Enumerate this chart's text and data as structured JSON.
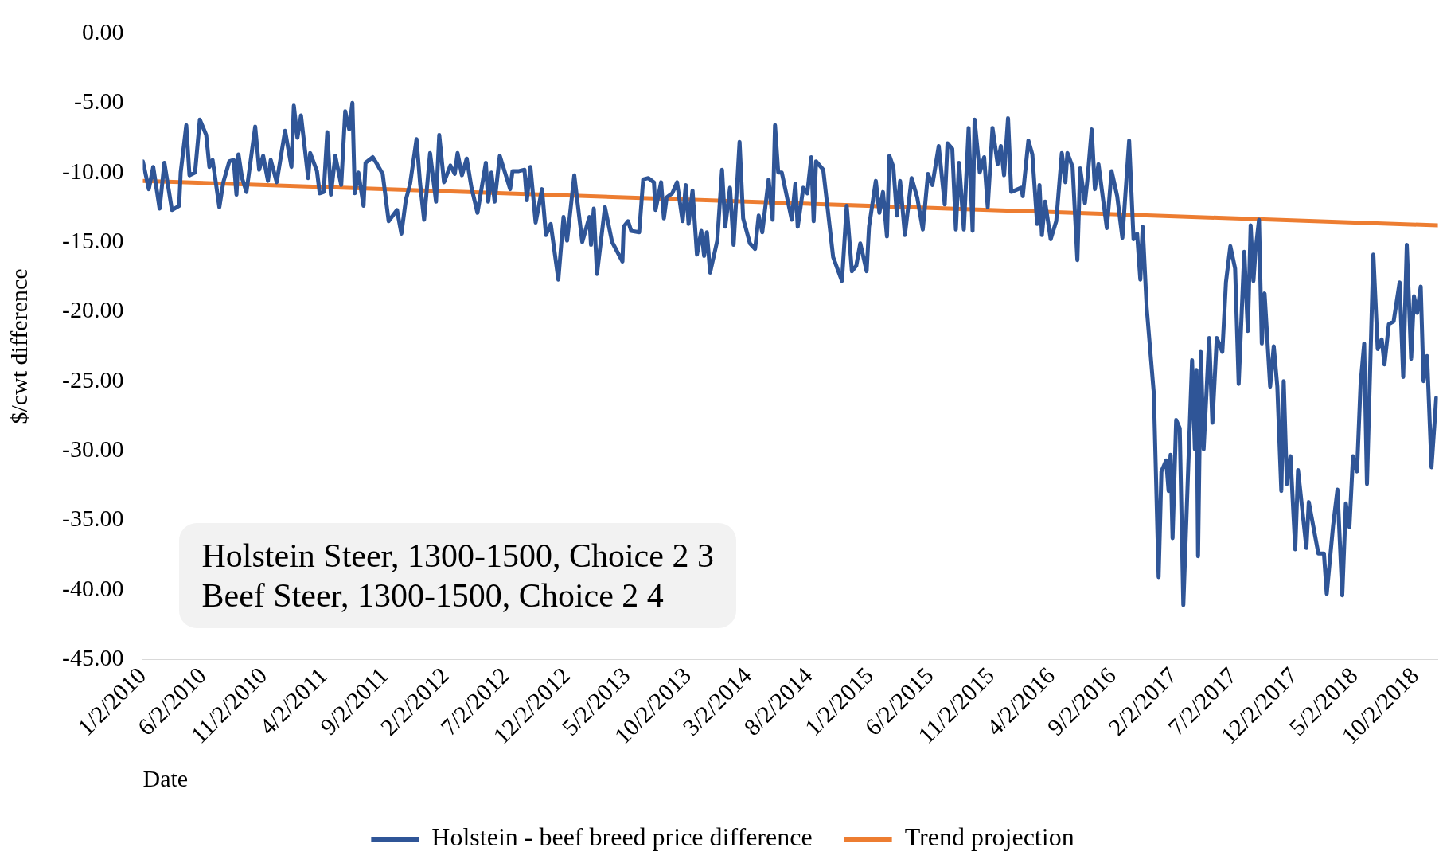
{
  "chart_data": {
    "type": "line",
    "xlabel": "Date",
    "ylabel": "$/cwt difference",
    "legend": "bottom",
    "marker": "none",
    "xlim": [
      "2010-01-02",
      "2018-11-27"
    ],
    "ylim": [
      -45,
      0
    ],
    "xticks": [
      {
        "value": "2010-01-02",
        "label": "1/2/2010"
      },
      {
        "value": "2010-06-02",
        "label": "6/2/2010"
      },
      {
        "value": "2010-11-02",
        "label": "11/2/2010"
      },
      {
        "value": "2011-04-02",
        "label": "4/2/2011"
      },
      {
        "value": "2011-09-02",
        "label": "9/2/2011"
      },
      {
        "value": "2012-02-02",
        "label": "2/2/2012"
      },
      {
        "value": "2012-07-02",
        "label": "7/2/2012"
      },
      {
        "value": "2012-12-02",
        "label": "12/2/2012"
      },
      {
        "value": "2013-05-02",
        "label": "5/2/2013"
      },
      {
        "value": "2013-10-02",
        "label": "10/2/2013"
      },
      {
        "value": "2014-03-02",
        "label": "3/2/2014"
      },
      {
        "value": "2014-08-02",
        "label": "8/2/2014"
      },
      {
        "value": "2015-01-02",
        "label": "1/2/2015"
      },
      {
        "value": "2015-06-02",
        "label": "6/2/2015"
      },
      {
        "value": "2015-11-02",
        "label": "11/2/2015"
      },
      {
        "value": "2016-04-02",
        "label": "4/2/2016"
      },
      {
        "value": "2016-09-02",
        "label": "9/2/2016"
      },
      {
        "value": "2017-02-02",
        "label": "2/2/2017"
      },
      {
        "value": "2017-07-02",
        "label": "7/2/2017"
      },
      {
        "value": "2017-12-02",
        "label": "12/2/2017"
      },
      {
        "value": "2018-05-02",
        "label": "5/2/2018"
      },
      {
        "value": "2018-10-02",
        "label": "10/2/2018"
      }
    ],
    "yticks": [
      {
        "value": 0,
        "label": "0.00"
      },
      {
        "value": -5,
        "label": "-5.00"
      },
      {
        "value": -10,
        "label": "-10.00"
      },
      {
        "value": -15,
        "label": "-15.00"
      },
      {
        "value": -20,
        "label": "-20.00"
      },
      {
        "value": -25,
        "label": "-25.00"
      },
      {
        "value": -30,
        "label": "-30.00"
      },
      {
        "value": -35,
        "label": "-35.00"
      },
      {
        "value": -40,
        "label": "-40.00"
      },
      {
        "value": -45,
        "label": "-45.00"
      }
    ],
    "annotations": [
      "Holstein Steer, 1300-1500, Choice 2 3",
      "Beef Steer, 1300-1500, Choice 2 4"
    ],
    "series": [
      {
        "name": "Holstein - beef breed price difference",
        "color": "#2f5597",
        "type": "line",
        "x": [
          "2010-01-02",
          "2010-01-17",
          "2010-01-28",
          "2010-02-13",
          "2010-02-25",
          "2010-03-16",
          "2010-04-03",
          "2010-04-07",
          "2010-04-21",
          "2010-04-29",
          "2010-05-13",
          "2010-05-25",
          "2010-06-10",
          "2010-06-18",
          "2010-06-26",
          "2010-07-13",
          "2010-07-23",
          "2010-08-07",
          "2010-08-18",
          "2010-08-25",
          "2010-08-30",
          "2010-09-08",
          "2010-09-19",
          "2010-10-11",
          "2010-10-21",
          "2010-10-31",
          "2010-11-12",
          "2010-11-19",
          "2010-12-04",
          "2010-12-25",
          "2011-01-10",
          "2011-01-16",
          "2011-01-25",
          "2011-02-03",
          "2011-02-21",
          "2011-02-26",
          "2011-03-15",
          "2011-03-22",
          "2011-04-01",
          "2011-04-10",
          "2011-04-19",
          "2011-04-30",
          "2011-05-15",
          "2011-05-25",
          "2011-06-04",
          "2011-06-12",
          "2011-06-18",
          "2011-06-27",
          "2011-07-10",
          "2011-07-15",
          "2011-08-02",
          "2011-08-13",
          "2011-08-27",
          "2011-09-11",
          "2011-10-02",
          "2011-10-13",
          "2011-10-24",
          "2011-11-04",
          "2011-11-20",
          "2011-11-29",
          "2011-12-09",
          "2011-12-24",
          "2012-01-08",
          "2012-01-16",
          "2012-01-28",
          "2012-02-13",
          "2012-02-24",
          "2012-03-02",
          "2012-03-13",
          "2012-03-25",
          "2012-04-06",
          "2012-04-21",
          "2012-05-12",
          "2012-05-18",
          "2012-05-26",
          "2012-06-03",
          "2012-06-16",
          "2012-07-12",
          "2012-07-18",
          "2012-08-03",
          "2012-08-17",
          "2012-08-23",
          "2012-09-01",
          "2012-09-14",
          "2012-09-30",
          "2012-10-10",
          "2012-10-22",
          "2012-11-10",
          "2012-11-23",
          "2012-12-02",
          "2012-12-20",
          "2013-01-09",
          "2013-01-27",
          "2013-01-31",
          "2013-02-07",
          "2013-02-15",
          "2013-03-07",
          "2013-03-25",
          "2013-04-20",
          "2013-04-23",
          "2013-05-04",
          "2013-05-12",
          "2013-06-01",
          "2013-06-11",
          "2013-06-24",
          "2013-07-08",
          "2013-07-12",
          "2013-07-26",
          "2013-08-02",
          "2013-08-09",
          "2013-08-23",
          "2013-09-04",
          "2013-09-18",
          "2013-09-26",
          "2013-10-03",
          "2013-10-13",
          "2013-10-24",
          "2013-11-04",
          "2013-11-11",
          "2013-11-18",
          "2013-11-26",
          "2013-12-14",
          "2013-12-26",
          "2014-01-03",
          "2014-01-15",
          "2014-01-24",
          "2014-02-08",
          "2014-02-17",
          "2014-03-06",
          "2014-03-19",
          "2014-03-28",
          "2014-04-06",
          "2014-04-22",
          "2014-05-02",
          "2014-05-08",
          "2014-05-16",
          "2014-05-25",
          "2014-06-19",
          "2014-06-28",
          "2014-07-04",
          "2014-07-18",
          "2014-07-28",
          "2014-08-07",
          "2014-08-13",
          "2014-08-19",
          "2014-09-06",
          "2014-10-01",
          "2014-10-23",
          "2014-11-04",
          "2014-11-17",
          "2014-11-28",
          "2014-12-08",
          "2014-12-24",
          "2014-12-30",
          "2015-01-16",
          "2015-01-25",
          "2015-02-03",
          "2015-02-13",
          "2015-02-19",
          "2015-03-01",
          "2015-03-10",
          "2015-03-18",
          "2015-03-30",
          "2015-04-16",
          "2015-04-30",
          "2015-05-14",
          "2015-05-27",
          "2015-06-07",
          "2015-06-23",
          "2015-07-08",
          "2015-07-15",
          "2015-07-27",
          "2015-08-05",
          "2015-08-13",
          "2015-08-25",
          "2015-09-06",
          "2015-09-16",
          "2015-09-21",
          "2015-10-04",
          "2015-10-15",
          "2015-10-24",
          "2015-11-05",
          "2015-11-18",
          "2015-11-26",
          "2015-12-04",
          "2015-12-14",
          "2015-12-22",
          "2016-01-16",
          "2016-01-20",
          "2016-02-03",
          "2016-02-13",
          "2016-02-25",
          "2016-03-02",
          "2016-03-08",
          "2016-03-16",
          "2016-03-30",
          "2016-04-13",
          "2016-04-27",
          "2016-05-06",
          "2016-05-11",
          "2016-05-24",
          "2016-06-05",
          "2016-06-12",
          "2016-06-24",
          "2016-06-30",
          "2016-07-11",
          "2016-07-19",
          "2016-07-28",
          "2016-08-18",
          "2016-08-30",
          "2016-09-13",
          "2016-09-26",
          "2016-10-13",
          "2016-10-24",
          "2016-11-02",
          "2016-11-10",
          "2016-11-16",
          "2016-11-26",
          "2016-12-14",
          "2016-12-26",
          "2017-01-02",
          "2017-01-14",
          "2017-01-20",
          "2017-01-25",
          "2017-01-30",
          "2017-02-08",
          "2017-02-17",
          "2017-02-26",
          "2017-03-20",
          "2017-03-27",
          "2017-03-31",
          "2017-04-04",
          "2017-04-11",
          "2017-04-18",
          "2017-05-02",
          "2017-05-10",
          "2017-05-21",
          "2017-06-04",
          "2017-06-13",
          "2017-06-24",
          "2017-07-06",
          "2017-07-15",
          "2017-07-29",
          "2017-08-07",
          "2017-08-14",
          "2017-08-21",
          "2017-08-26",
          "2017-09-04",
          "2017-09-11",
          "2017-09-18",
          "2017-10-02",
          "2017-10-11",
          "2017-10-20",
          "2017-10-30",
          "2017-11-05",
          "2017-11-13",
          "2017-11-22",
          "2017-12-04",
          "2017-12-11",
          "2018-01-01",
          "2018-01-07",
          "2018-01-31",
          "2018-02-14",
          "2018-02-21",
          "2018-03-09",
          "2018-03-20",
          "2018-04-01",
          "2018-04-10",
          "2018-04-19",
          "2018-04-28",
          "2018-05-08",
          "2018-05-17",
          "2018-05-26",
          "2018-06-02",
          "2018-06-18",
          "2018-06-29",
          "2018-07-09",
          "2018-07-16",
          "2018-07-27",
          "2018-08-08",
          "2018-08-23",
          "2018-09-01",
          "2018-09-10",
          "2018-09-21",
          "2018-09-28",
          "2018-10-06",
          "2018-10-15",
          "2018-10-22",
          "2018-10-31",
          "2018-11-11",
          "2018-11-23"
        ],
        "values": [
          -9.2,
          -11.2,
          -9.6,
          -12.6,
          -9.3,
          -12.7,
          -12.4,
          -10.0,
          -6.6,
          -10.2,
          -10.0,
          -6.2,
          -7.3,
          -9.6,
          -9.1,
          -12.5,
          -10.7,
          -9.2,
          -9.1,
          -11.6,
          -8.7,
          -10.4,
          -11.4,
          -6.7,
          -9.8,
          -8.8,
          -10.6,
          -9.1,
          -10.7,
          -7.0,
          -9.6,
          -5.2,
          -7.5,
          -5.9,
          -10.4,
          -8.6,
          -9.9,
          -11.5,
          -11.4,
          -7.1,
          -11.6,
          -8.8,
          -10.9,
          -5.6,
          -6.9,
          -5.0,
          -11.5,
          -10.0,
          -12.4,
          -9.3,
          -8.9,
          -9.4,
          -10.1,
          -13.5,
          -12.7,
          -14.4,
          -12.0,
          -10.8,
          -7.6,
          -10.8,
          -13.4,
          -8.6,
          -12.1,
          -7.3,
          -10.7,
          -9.5,
          -10.1,
          -8.6,
          -10.2,
          -9.0,
          -11.1,
          -12.9,
          -9.3,
          -12.1,
          -10.0,
          -12.1,
          -8.8,
          -11.2,
          -9.9,
          -9.9,
          -9.8,
          -12.0,
          -9.6,
          -13.6,
          -11.2,
          -14.5,
          -13.7,
          -17.7,
          -13.2,
          -14.9,
          -10.2,
          -15.0,
          -13.2,
          -15.2,
          -12.6,
          -17.3,
          -12.5,
          -15.0,
          -16.4,
          -13.9,
          -13.5,
          -14.2,
          -14.3,
          -10.5,
          -10.4,
          -10.7,
          -12.7,
          -10.7,
          -13.3,
          -11.8,
          -11.5,
          -10.7,
          -13.5,
          -10.9,
          -13.7,
          -11.3,
          -15.9,
          -14.2,
          -16.0,
          -14.3,
          -17.2,
          -14.9,
          -9.8,
          -13.9,
          -11.1,
          -15.2,
          -7.8,
          -13.3,
          -15.1,
          -15.5,
          -13.1,
          -14.3,
          -10.5,
          -13.4,
          -6.6,
          -10.0,
          -10.0,
          -13.4,
          -10.8,
          -13.9,
          -11.1,
          -11.5,
          -8.9,
          -13.5,
          -9.2,
          -9.8,
          -16.1,
          -17.8,
          -12.4,
          -17.1,
          -16.7,
          -15.1,
          -17.1,
          -13.9,
          -10.6,
          -12.9,
          -11.4,
          -14.6,
          -8.8,
          -9.6,
          -13.1,
          -10.6,
          -14.5,
          -10.4,
          -11.8,
          -14.1,
          -10.1,
          -10.9,
          -8.1,
          -12.3,
          -7.9,
          -8.3,
          -14.1,
          -9.3,
          -14.1,
          -6.8,
          -14.2,
          -6.2,
          -10.0,
          -8.9,
          -12.5,
          -6.8,
          -9.4,
          -8.1,
          -10.2,
          -6.1,
          -11.4,
          -11.1,
          -11.7,
          -7.7,
          -8.7,
          -13.7,
          -10.9,
          -14.5,
          -12.1,
          -14.8,
          -13.5,
          -8.6,
          -10.7,
          -8.6,
          -9.6,
          -16.3,
          -9.7,
          -12.2,
          -10.6,
          -6.9,
          -11.2,
          -9.4,
          -14.0,
          -9.9,
          -11.7,
          -14.7,
          -7.7,
          -14.8,
          -14.4,
          -17.7,
          -13.9,
          -19.7,
          -25.9,
          -39.1,
          -31.5,
          -30.7,
          -32.9,
          -30.3,
          -36.3,
          -27.8,
          -28.4,
          -41.1,
          -23.5,
          -29.9,
          -24.2,
          -37.6,
          -22.9,
          -29.9,
          -21.9,
          -28.0,
          -21.9,
          -22.9,
          -17.9,
          -15.3,
          -16.9,
          -25.2,
          -15.7,
          -21.4,
          -13.8,
          -17.8,
          -15.7,
          -13.4,
          -22.3,
          -18.7,
          -25.4,
          -22.5,
          -25.4,
          -32.9,
          -25.0,
          -32.4,
          -30.4,
          -37.1,
          -31.4,
          -37.0,
          -33.7,
          -37.4,
          -37.4,
          -40.3,
          -35.4,
          -32.8,
          -40.4,
          -33.8,
          -35.5,
          -30.4,
          -31.5,
          -25.2,
          -22.3,
          -32.4,
          -15.9,
          -22.7,
          -22.0,
          -23.8,
          -20.9,
          -20.7,
          -17.9,
          -24.7,
          -15.2,
          -23.4,
          -18.9,
          -20.1,
          -18.2,
          -25.0,
          -23.2,
          -31.2,
          -26.2
        ]
      },
      {
        "name": "Trend projection",
        "color": "#ed7d31",
        "type": "line",
        "x": [
          "2010-01-02",
          "2018-11-27"
        ],
        "values": [
          -10.6,
          -13.8
        ]
      }
    ]
  }
}
